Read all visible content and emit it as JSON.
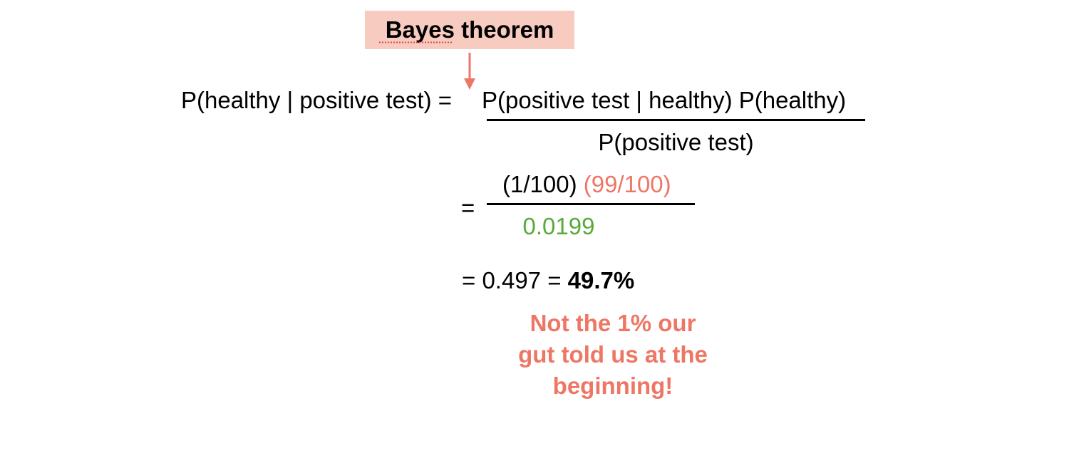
{
  "callout": {
    "label": "Bayes theorem"
  },
  "formula": {
    "lhs": "P(healthy | positive test) =",
    "numerator": "P(positive test | healthy) P(healthy)",
    "denominator": "P(positive test)",
    "step2_equals": "=",
    "step2_numerator_a": "(1/100)",
    "step2_numerator_b": "(99/100)",
    "step2_denominator": "0.0199",
    "result_prefix": "= 0.497 =",
    "result_bold": "49.7%"
  },
  "note": {
    "lines": [
      "Not the 1% our",
      "gut told us at the",
      "beginning!"
    ]
  },
  "colors": {
    "callout_bg": "#f8cbc1",
    "accent": "#ee7664",
    "green": "#57a93a"
  }
}
